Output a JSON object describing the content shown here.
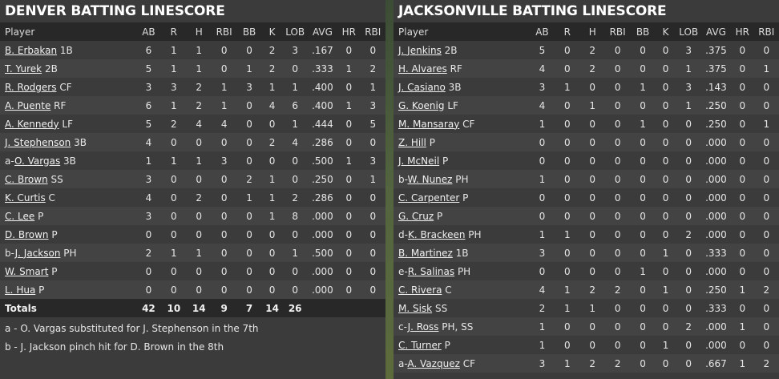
{
  "columns": [
    "Player",
    "AB",
    "R",
    "H",
    "RBI",
    "BB",
    "K",
    "LOB",
    "AVG",
    "HR",
    "RBI"
  ],
  "denver": {
    "title": "DENVER BATTING LINESCORE",
    "rows": [
      {
        "prefix": "",
        "name": "B. Erbakan",
        "pos": "1B",
        "stats": [
          "6",
          "1",
          "1",
          "0",
          "0",
          "2",
          "3",
          ".167",
          "0",
          "0"
        ]
      },
      {
        "prefix": "",
        "name": "T. Yurek",
        "pos": "2B",
        "stats": [
          "5",
          "1",
          "1",
          "0",
          "1",
          "2",
          "0",
          ".333",
          "1",
          "2"
        ]
      },
      {
        "prefix": "",
        "name": "R. Rodgers",
        "pos": "CF",
        "stats": [
          "3",
          "3",
          "2",
          "1",
          "3",
          "1",
          "1",
          ".400",
          "0",
          "1"
        ]
      },
      {
        "prefix": "",
        "name": "A. Puente",
        "pos": "RF",
        "stats": [
          "6",
          "1",
          "2",
          "1",
          "0",
          "4",
          "6",
          ".400",
          "1",
          "3"
        ]
      },
      {
        "prefix": "",
        "name": "A. Kennedy",
        "pos": "LF",
        "stats": [
          "5",
          "2",
          "4",
          "4",
          "0",
          "0",
          "1",
          ".444",
          "0",
          "5"
        ]
      },
      {
        "prefix": "",
        "name": "J. Stephenson",
        "pos": "3B",
        "stats": [
          "4",
          "0",
          "0",
          "0",
          "0",
          "2",
          "4",
          ".286",
          "0",
          "0"
        ]
      },
      {
        "prefix": "a-",
        "name": "O. Vargas",
        "pos": "3B",
        "stats": [
          "1",
          "1",
          "1",
          "3",
          "0",
          "0",
          "0",
          ".500",
          "1",
          "3"
        ]
      },
      {
        "prefix": "",
        "name": "C. Brown",
        "pos": "SS",
        "stats": [
          "3",
          "0",
          "0",
          "0",
          "2",
          "1",
          "0",
          ".250",
          "0",
          "1"
        ]
      },
      {
        "prefix": "",
        "name": "K. Curtis",
        "pos": "C",
        "stats": [
          "4",
          "0",
          "2",
          "0",
          "1",
          "1",
          "2",
          ".286",
          "0",
          "0"
        ]
      },
      {
        "prefix": "",
        "name": "C. Lee",
        "pos": "P",
        "stats": [
          "3",
          "0",
          "0",
          "0",
          "0",
          "1",
          "8",
          ".000",
          "0",
          "0"
        ]
      },
      {
        "prefix": "",
        "name": "D. Brown",
        "pos": "P",
        "stats": [
          "0",
          "0",
          "0",
          "0",
          "0",
          "0",
          "0",
          ".000",
          "0",
          "0"
        ]
      },
      {
        "prefix": "b-",
        "name": "J. Jackson",
        "pos": "PH",
        "stats": [
          "2",
          "1",
          "1",
          "0",
          "0",
          "0",
          "1",
          ".500",
          "0",
          "0"
        ]
      },
      {
        "prefix": "",
        "name": "W. Smart",
        "pos": "P",
        "stats": [
          "0",
          "0",
          "0",
          "0",
          "0",
          "0",
          "0",
          ".000",
          "0",
          "0"
        ]
      },
      {
        "prefix": "",
        "name": "L. Hua",
        "pos": "P",
        "stats": [
          "0",
          "0",
          "0",
          "0",
          "0",
          "0",
          "0",
          ".000",
          "0",
          "0"
        ]
      }
    ],
    "totals": {
      "label": "Totals",
      "stats": [
        "42",
        "10",
        "14",
        "9",
        "7",
        "14",
        "26",
        "",
        "",
        ""
      ]
    },
    "notes": [
      "a - O. Vargas substituted for J. Stephenson in the 7th",
      "b - J. Jackson pinch hit for D. Brown in the 8th"
    ]
  },
  "jacksonville": {
    "title": "JACKSONVILLE BATTING LINESCORE",
    "rows": [
      {
        "prefix": "",
        "name": "J. Jenkins",
        "pos": "2B",
        "stats": [
          "5",
          "0",
          "2",
          "0",
          "0",
          "0",
          "3",
          ".375",
          "0",
          "0"
        ]
      },
      {
        "prefix": "",
        "name": "H. Alvares",
        "pos": "RF",
        "stats": [
          "4",
          "0",
          "2",
          "0",
          "0",
          "0",
          "1",
          ".375",
          "0",
          "1"
        ]
      },
      {
        "prefix": "",
        "name": "J. Casiano",
        "pos": "3B",
        "stats": [
          "3",
          "1",
          "0",
          "0",
          "1",
          "0",
          "3",
          ".143",
          "0",
          "0"
        ]
      },
      {
        "prefix": "",
        "name": "G. Koenig",
        "pos": "LF",
        "stats": [
          "4",
          "0",
          "1",
          "0",
          "0",
          "0",
          "1",
          ".250",
          "0",
          "0"
        ]
      },
      {
        "prefix": "",
        "name": "M. Mansaray",
        "pos": "CF",
        "stats": [
          "1",
          "0",
          "0",
          "0",
          "1",
          "0",
          "0",
          ".250",
          "0",
          "1"
        ]
      },
      {
        "prefix": "",
        "name": "Z. Hill",
        "pos": "P",
        "stats": [
          "0",
          "0",
          "0",
          "0",
          "0",
          "0",
          "0",
          ".000",
          "0",
          "0"
        ]
      },
      {
        "prefix": "",
        "name": "J. McNeil",
        "pos": "P",
        "stats": [
          "0",
          "0",
          "0",
          "0",
          "0",
          "0",
          "0",
          ".000",
          "0",
          "0"
        ]
      },
      {
        "prefix": "b-",
        "name": "W. Nunez",
        "pos": "PH",
        "stats": [
          "1",
          "0",
          "0",
          "0",
          "0",
          "0",
          "0",
          ".000",
          "0",
          "0"
        ]
      },
      {
        "prefix": "",
        "name": "C. Carpenter",
        "pos": "P",
        "stats": [
          "0",
          "0",
          "0",
          "0",
          "0",
          "0",
          "0",
          ".000",
          "0",
          "0"
        ]
      },
      {
        "prefix": "",
        "name": "G. Cruz",
        "pos": "P",
        "stats": [
          "0",
          "0",
          "0",
          "0",
          "0",
          "0",
          "0",
          ".000",
          "0",
          "0"
        ]
      },
      {
        "prefix": "d-",
        "name": "K. Brackeen",
        "pos": "PH",
        "stats": [
          "1",
          "1",
          "0",
          "0",
          "0",
          "0",
          "2",
          ".000",
          "0",
          "0"
        ]
      },
      {
        "prefix": "",
        "name": "B. Martinez",
        "pos": "1B",
        "stats": [
          "3",
          "0",
          "0",
          "0",
          "0",
          "1",
          "0",
          ".333",
          "0",
          "0"
        ]
      },
      {
        "prefix": "e-",
        "name": "R. Salinas",
        "pos": "PH",
        "stats": [
          "0",
          "0",
          "0",
          "0",
          "1",
          "0",
          "0",
          ".000",
          "0",
          "0"
        ]
      },
      {
        "prefix": "",
        "name": "C. Rivera",
        "pos": "C",
        "stats": [
          "4",
          "1",
          "2",
          "2",
          "0",
          "1",
          "0",
          ".250",
          "1",
          "2"
        ]
      },
      {
        "prefix": "",
        "name": "M. Sisk",
        "pos": "SS",
        "stats": [
          "2",
          "1",
          "1",
          "0",
          "0",
          "0",
          "0",
          ".333",
          "0",
          "0"
        ]
      },
      {
        "prefix": "c-",
        "name": "J. Ross",
        "pos": "PH, SS",
        "stats": [
          "1",
          "0",
          "0",
          "0",
          "0",
          "0",
          "2",
          ".000",
          "1",
          "0"
        ]
      },
      {
        "prefix": "",
        "name": "C. Turner",
        "pos": "P",
        "stats": [
          "1",
          "0",
          "0",
          "0",
          "0",
          "1",
          "0",
          ".000",
          "0",
          "0"
        ]
      },
      {
        "prefix": "a-",
        "name": "A. Vazquez",
        "pos": "CF",
        "stats": [
          "3",
          "1",
          "2",
          "2",
          "0",
          "0",
          "0",
          ".667",
          "1",
          "2"
        ]
      }
    ]
  }
}
